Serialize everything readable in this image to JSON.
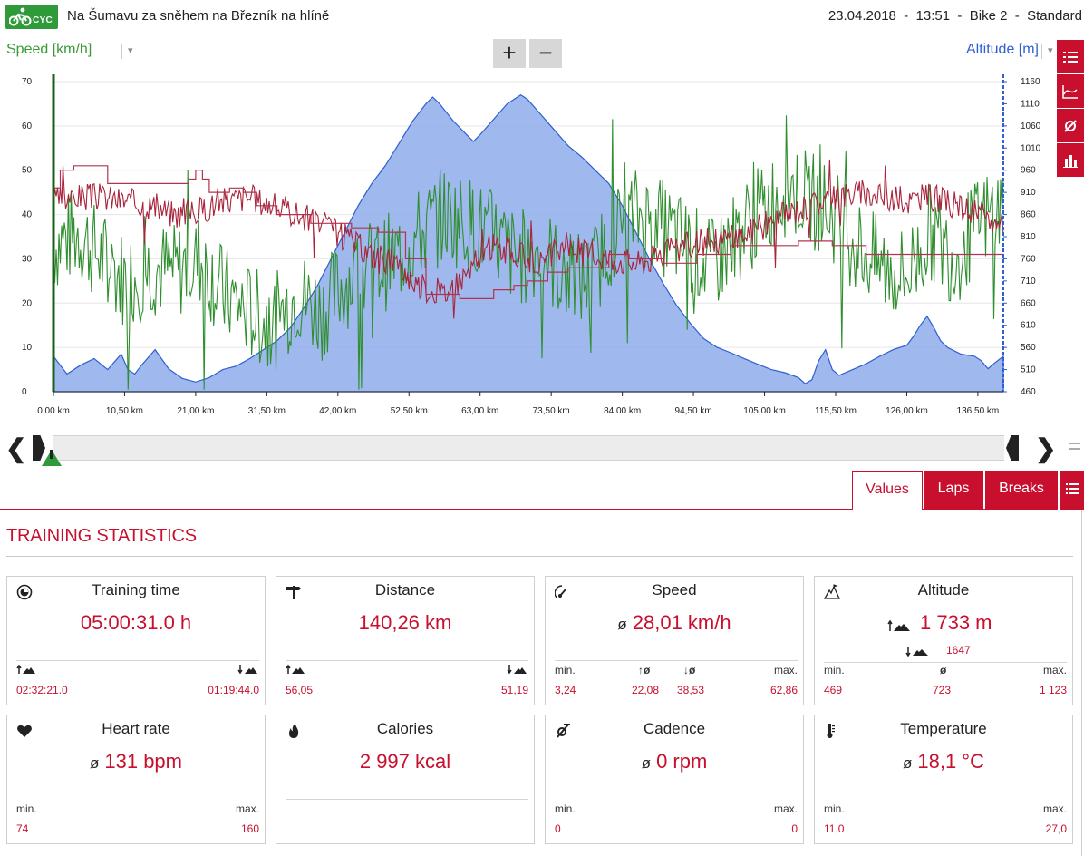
{
  "header": {
    "logo_text": "CYC",
    "title": "Na Šumavu za sněhem na Březník na hlíně",
    "meta": "23.04.2018  -  13:51  -  Bike 2  -  Standard"
  },
  "chart_toolbar": {
    "left_axis_label": "Speed [km/h]",
    "right_axis_label": "Altitude [m]",
    "zoom_in": "+",
    "zoom_out": "−",
    "side_icons": [
      "list-icon",
      "line-chart-icon",
      "average-icon",
      "bar-chart-icon"
    ]
  },
  "chart_data": {
    "type": "line",
    "xlabel": "",
    "x_ticks": [
      "0,00 km",
      "10,50 km",
      "21,00 km",
      "31,50 km",
      "42,00 km",
      "52,50 km",
      "63,00 km",
      "73,50 km",
      "84,00 km",
      "94,50 km",
      "105,00 km",
      "115,50 km",
      "126,00 km",
      "136,50 km"
    ],
    "x_range_km": [
      0,
      140.26
    ],
    "y_left": {
      "label": "Speed [km/h]",
      "ticks": [
        "70",
        "60",
        "50",
        "40",
        "30",
        "20",
        "10",
        "0"
      ],
      "range": [
        0,
        70
      ]
    },
    "y_right": {
      "label": "Altitude [m]",
      "ticks": [
        "1160",
        "1110",
        "1060",
        "1010",
        "960",
        "910",
        "860",
        "810",
        "760",
        "710",
        "660",
        "610",
        "560",
        "510",
        "460"
      ],
      "range": [
        460,
        1160
      ]
    },
    "grid": true,
    "series": [
      {
        "axis": "right",
        "type": "area",
        "color": "#5b86e0",
        "x": [
          0,
          2,
          4,
          6,
          8,
          10,
          11,
          12,
          13,
          15,
          17,
          19,
          21,
          23,
          25,
          27,
          29,
          31,
          33,
          35,
          37,
          39,
          41,
          43,
          45,
          47,
          49,
          51,
          53,
          55,
          56,
          57,
          59,
          61,
          62,
          63,
          65,
          67,
          69,
          70,
          72,
          74,
          76,
          78,
          80,
          82,
          84,
          86,
          88,
          90,
          92,
          94,
          96,
          98,
          100,
          102,
          104,
          106,
          108,
          110,
          111,
          112,
          113,
          114,
          115,
          116,
          118,
          120,
          122,
          124,
          126,
          127,
          128,
          129,
          130,
          131,
          132,
          134,
          136,
          137,
          138,
          139,
          140.26
        ],
        "y": [
          540,
          500,
          520,
          535,
          510,
          545,
          510,
          500,
          520,
          555,
          512,
          490,
          482,
          492,
          510,
          518,
          535,
          555,
          575,
          605,
          650,
          700,
          760,
          820,
          880,
          930,
          970,
          1020,
          1070,
          1110,
          1125,
          1110,
          1072,
          1040,
          1025,
          1040,
          1075,
          1110,
          1130,
          1120,
          1085,
          1050,
          1015,
          990,
          960,
          930,
          880,
          820,
          760,
          705,
          655,
          615,
          580,
          560,
          548,
          535,
          522,
          510,
          503,
          492,
          478,
          487,
          530,
          555,
          510,
          497,
          510,
          523,
          540,
          555,
          565,
          585,
          610,
          630,
          605,
          575,
          560,
          545,
          540,
          530,
          512,
          525,
          540
        ]
      },
      {
        "axis": "left",
        "type": "line",
        "name": "",
        "color": "#2f8f2f",
        "seed": 7,
        "base": [
          33,
          36,
          30,
          25,
          28,
          27,
          30,
          22,
          18,
          15,
          22,
          18,
          25,
          28,
          30,
          35,
          40,
          38,
          35,
          30,
          32,
          26,
          25,
          36,
          40,
          37,
          33,
          28,
          35,
          40,
          46,
          44,
          40,
          33,
          28,
          26,
          36,
          30,
          38,
          42
        ],
        "noise": 14
      },
      {
        "axis": "left",
        "type": "line",
        "name": "",
        "color": "#a8233b",
        "seed": 3,
        "base": [
          43,
          44,
          44,
          43,
          42,
          40,
          41,
          43,
          44,
          42,
          40,
          38,
          35,
          31,
          29,
          24,
          22,
          27,
          33,
          31,
          29,
          33,
          31,
          30,
          29,
          31,
          33,
          34,
          35,
          37,
          40,
          42,
          44,
          45,
          44,
          43,
          44,
          42,
          40,
          37
        ],
        "noise": 4
      },
      {
        "axis": "left",
        "type": "step",
        "name": "",
        "color": "#b2334f",
        "x": [
          0,
          1,
          3,
          8,
          14,
          20,
          21,
          22,
          23,
          26,
          28,
          30,
          33,
          38,
          44,
          48,
          52,
          55,
          60,
          65,
          68,
          70,
          73,
          76,
          82,
          85,
          90,
          95,
          100,
          110,
          115,
          120,
          140.26
        ],
        "y": [
          46,
          50,
          51,
          47,
          47,
          48,
          50,
          48,
          45,
          46,
          45,
          42,
          40,
          38,
          37,
          36,
          30,
          22,
          21,
          23,
          24,
          25,
          27,
          28,
          31,
          30,
          29,
          31,
          33,
          34,
          33,
          31,
          30
        ]
      }
    ]
  },
  "slider": {
    "left_arrow": "❮",
    "right_arrow": "❯"
  },
  "tabs": {
    "values": "Values",
    "laps": "Laps",
    "breaks": "Breaks"
  },
  "stats": {
    "title": "TRAINING STATISTICS",
    "training_time": {
      "title": "Training time",
      "value": "05:00:31.0 h",
      "up": "02:32:21.0",
      "down": "01:19:44.0"
    },
    "distance": {
      "title": "Distance",
      "value": "140,26 km",
      "up": "56,05",
      "down": "51,19"
    },
    "speed": {
      "title": "Speed",
      "avg_symbol": "ø",
      "value": "28,01 km/h",
      "min_label": "min.",
      "max_label": "max.",
      "up_avg_label": "↑ø",
      "down_avg_label": "↓ø",
      "min": "3,24",
      "up_avg": "22,08",
      "down_avg": "38,53",
      "max": "62,86"
    },
    "altitude": {
      "title": "Altitude",
      "value": "1 733 m",
      "down_value": "1647",
      "min_label": "min.",
      "avg_label": "ø",
      "max_label": "max.",
      "min": "469",
      "avg": "723",
      "max": "1 123"
    },
    "heart_rate": {
      "title": "Heart rate",
      "avg_symbol": "ø",
      "value": "131 bpm",
      "min_label": "min.",
      "max_label": "max.",
      "min": "74",
      "max": "160"
    },
    "calories": {
      "title": "Calories",
      "value": "2 997 kcal"
    },
    "cadence": {
      "title": "Cadence",
      "avg_symbol": "ø",
      "value": "0 rpm",
      "min_label": "min.",
      "max_label": "max.",
      "min": "0",
      "max": "0"
    },
    "temperature": {
      "title": "Temperature",
      "avg_symbol": "ø",
      "value": "18,1 °C",
      "min_label": "min.",
      "max_label": "max.",
      "min": "11,0",
      "max": "27,0"
    }
  },
  "colors": {
    "accent": "#c8102e",
    "speed": "#3a9a3a",
    "altitude": "#2f5fd0"
  }
}
